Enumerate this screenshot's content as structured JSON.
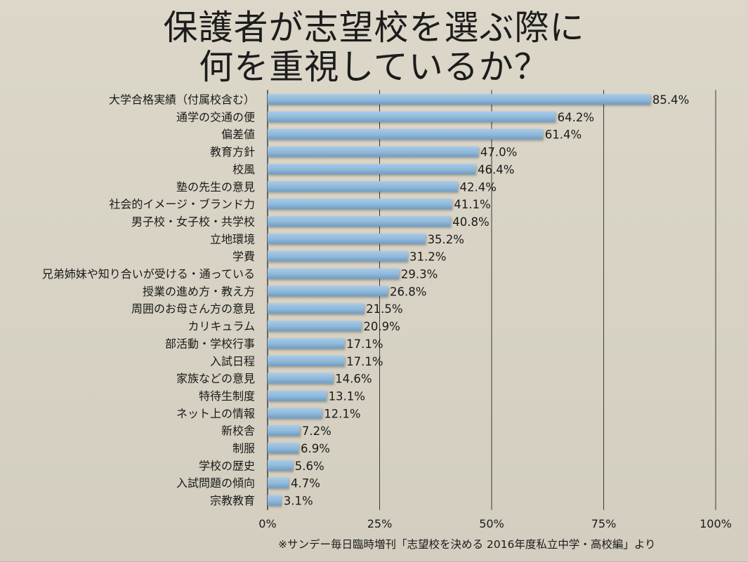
{
  "title_lines": [
    "保護者が志望校を選ぶ際に",
    "何を重視しているか？"
  ],
  "source_note": "※サンデー毎日臨時増刊「志望校を決める 2016年度私立中学・高校編」より",
  "colors": {
    "bar": "#8fb8da",
    "bar_dark": "#6d9cc4",
    "grid": "#2a2a2a",
    "background": "#d8d3c5"
  },
  "chart_data": {
    "type": "bar",
    "orientation": "horizontal",
    "title": "保護者が志望校を選ぶ際に何を重視しているか？",
    "xlabel": "",
    "ylabel": "",
    "xlim": [
      0,
      100
    ],
    "grid": true,
    "legend": "none",
    "ticks": [
      "0%",
      "25%",
      "50%",
      "75%",
      "100%"
    ],
    "tick_values": [
      0,
      25,
      50,
      75,
      100
    ],
    "categories": [
      "大学合格実績（付属校含む）",
      "通学の交通の便",
      "偏差値",
      "教育方針",
      "校風",
      "塾の先生の意見",
      "社会的イメージ・ブランド力",
      "男子校・女子校・共学校",
      "立地環境",
      "学費",
      "兄弟姉妹や知り合いが受ける・通っている",
      "授業の進め方・教え方",
      "周囲のお母さん方の意見",
      "カリキュラム",
      "部活動・学校行事",
      "入試日程",
      "家族などの意見",
      "特待生制度",
      "ネット上の情報",
      "新校舎",
      "制服",
      "学校の歴史",
      "入試問題の傾向",
      "宗教教育"
    ],
    "values": [
      85.4,
      64.2,
      61.4,
      47.0,
      46.4,
      42.4,
      41.1,
      40.8,
      35.2,
      31.2,
      29.3,
      26.8,
      21.5,
      20.9,
      17.1,
      17.1,
      14.6,
      13.1,
      12.1,
      7.2,
      6.9,
      5.6,
      4.7,
      3.1
    ],
    "value_labels": [
      "85.4%",
      "64.2%",
      "61.4%",
      "47.0%",
      "46.4%",
      "42.4%",
      "41.1%",
      "40.8%",
      "35.2%",
      "31.2%",
      "29.3%",
      "26.8%",
      "21.5%",
      "20.9%",
      "17.1%",
      "17.1%",
      "14.6%",
      "13.1%",
      "12.1%",
      "7.2%",
      "6.9%",
      "5.6%",
      "4.7%",
      "3.1%"
    ]
  }
}
